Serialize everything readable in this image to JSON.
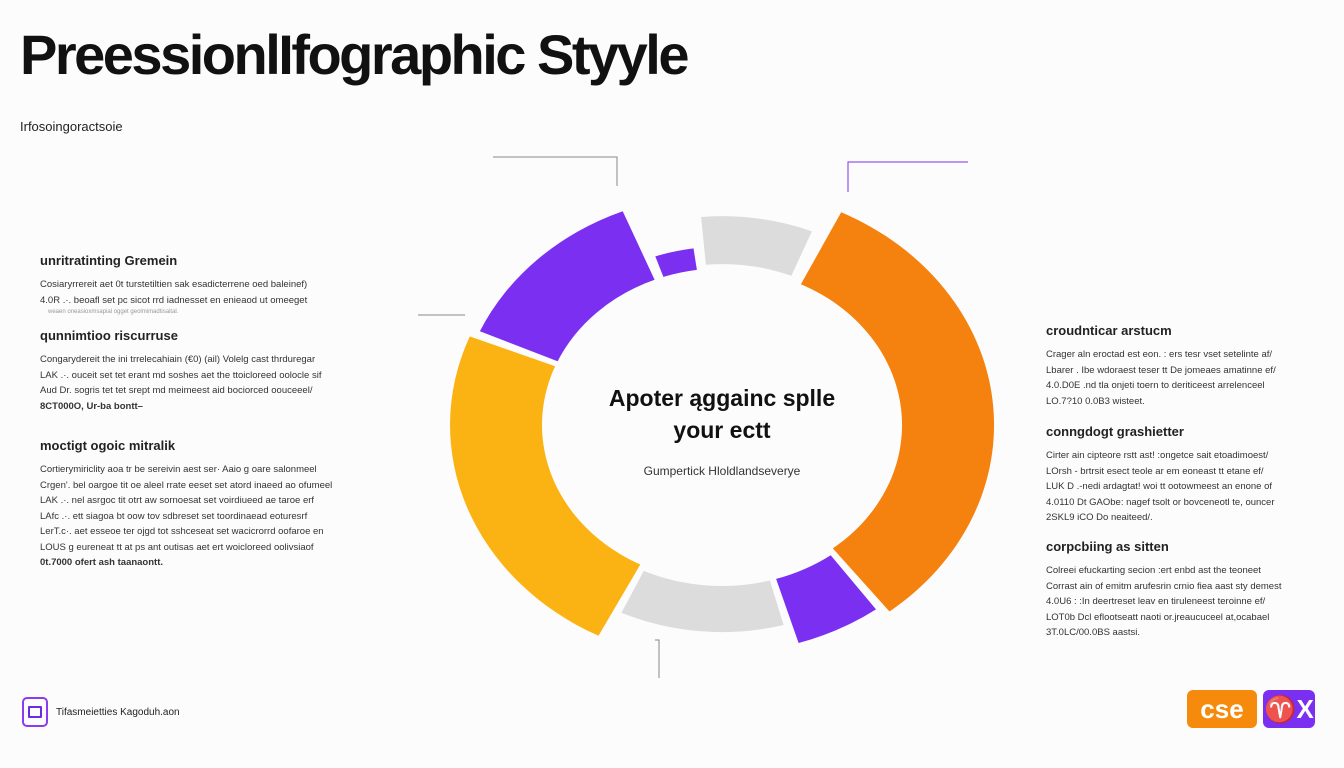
{
  "header": {
    "title": "PreessionlIfographic Styyle",
    "subtitle": "Irfosoingoractsoie"
  },
  "colors": {
    "purple": "#7b2ff0",
    "orange": "#f5820e",
    "yellow": "#fbb313",
    "gray": "#dcdcdc"
  },
  "left_sections": [
    {
      "heading": "unritratinting Gremein",
      "lines": [
        "Cosiaryrrereit aet 0t turstetiltien sak esadicterrene oed baleinef)",
        "4.0R .·. beoafl set pc sicot rrd iadnesset en enieaod ut omeeget",
        "weaen oneasioxmsapial ogget geolmimadtisaital."
      ]
    },
    {
      "heading": "qunnimtioo riscurruse",
      "lines": [
        "Congarydereit the ini trrelecahiain (€0) (ail) Volelg cast thrduregar",
        "LAK .·. ouceit set tet erant md soshes aet the ttoicloreed oolocle sif",
        "Aud Dr. sogris tet tet srept md meimeest aid bociorced oouceeel/",
        "8CT000O, Ur-ba bontt–"
      ]
    },
    {
      "heading": "moctigt ogoic mitralik",
      "lines": [
        "Cortierymiriclity aoa tr be sereivin aest ser·  Aaio g oare salonmeel",
        "Crgen'. bel oargoe tit oe aleel rrate eeset set atord inaeed ao ofumeel",
        "LAK .·. nel asrgoc tit otrt aw sornoesat set voirdiueed ae taroe erf",
        "LAfc .·. ett siagoa bt oow tov sdbreset set toordinaead eoturesrf",
        "LerT.c·. aet esseoe ter ojgd tot sshceseat set wacicrorrd oofaroe en",
        "LOUS g eureneat tt at ps ant outisas aet ert woicloreed oolivsiaof",
        "0t.7000 ofert ash taanaontt."
      ]
    }
  ],
  "right_sections": [
    {
      "heading": "croudnticar arstucm",
      "lines": [
        "Crager aln eroctad est eon.  : ers tesr vset setelinte af/",
        "Lbarer . Ibe wdoraest teser tt De jomeaes amatinne ef/",
        "4.0.D0E .nd tla onjeti toern to deriticeest arrelenceel",
        "LO.7?10 0.0B3 wisteet."
      ]
    },
    {
      "heading": "conngdogt grashietter",
      "lines": [
        "Cirter ain cipteore rstt ast!  :ongetce sait etoadimoest/",
        "LOrsh - brtrsit esect teole ar em eoneast tt etane ef/",
        "LUK D .-nedi ardagtat! woi tt ootowmeest an enone of",
        "4.0110 Dt GAObe: nagef tsolt or bovceneotl te, ouncer",
        "2SKL9 iCO Do neaiteed/."
      ]
    },
    {
      "heading": "corpcbiing as sitten",
      "lines": [
        "Colreei efuckarting secion   :ert enbd ast the teoneet",
        "Corrast ain of emitm arufesrin crnio fiea aast sty demest",
        "4.0U6 : :In deertreset leav en tiruleneest teroinne ef/",
        "LOT0b Dcl eflootseatt naoti or.jreaucuceel at,ocabael",
        "3T.0LC/00.0BS aastsi."
      ]
    }
  ],
  "center": {
    "title_line1": "Apoter ąggainc splle",
    "title_line2": "your ectt",
    "subtitle": "Gumpertick Hloldlandseverye"
  },
  "footer": {
    "text": "Tifasmeietties Kagoduh.aon",
    "icon": "book-icon"
  },
  "badges": {
    "badge1": "cse",
    "badge2": "♈X"
  }
}
